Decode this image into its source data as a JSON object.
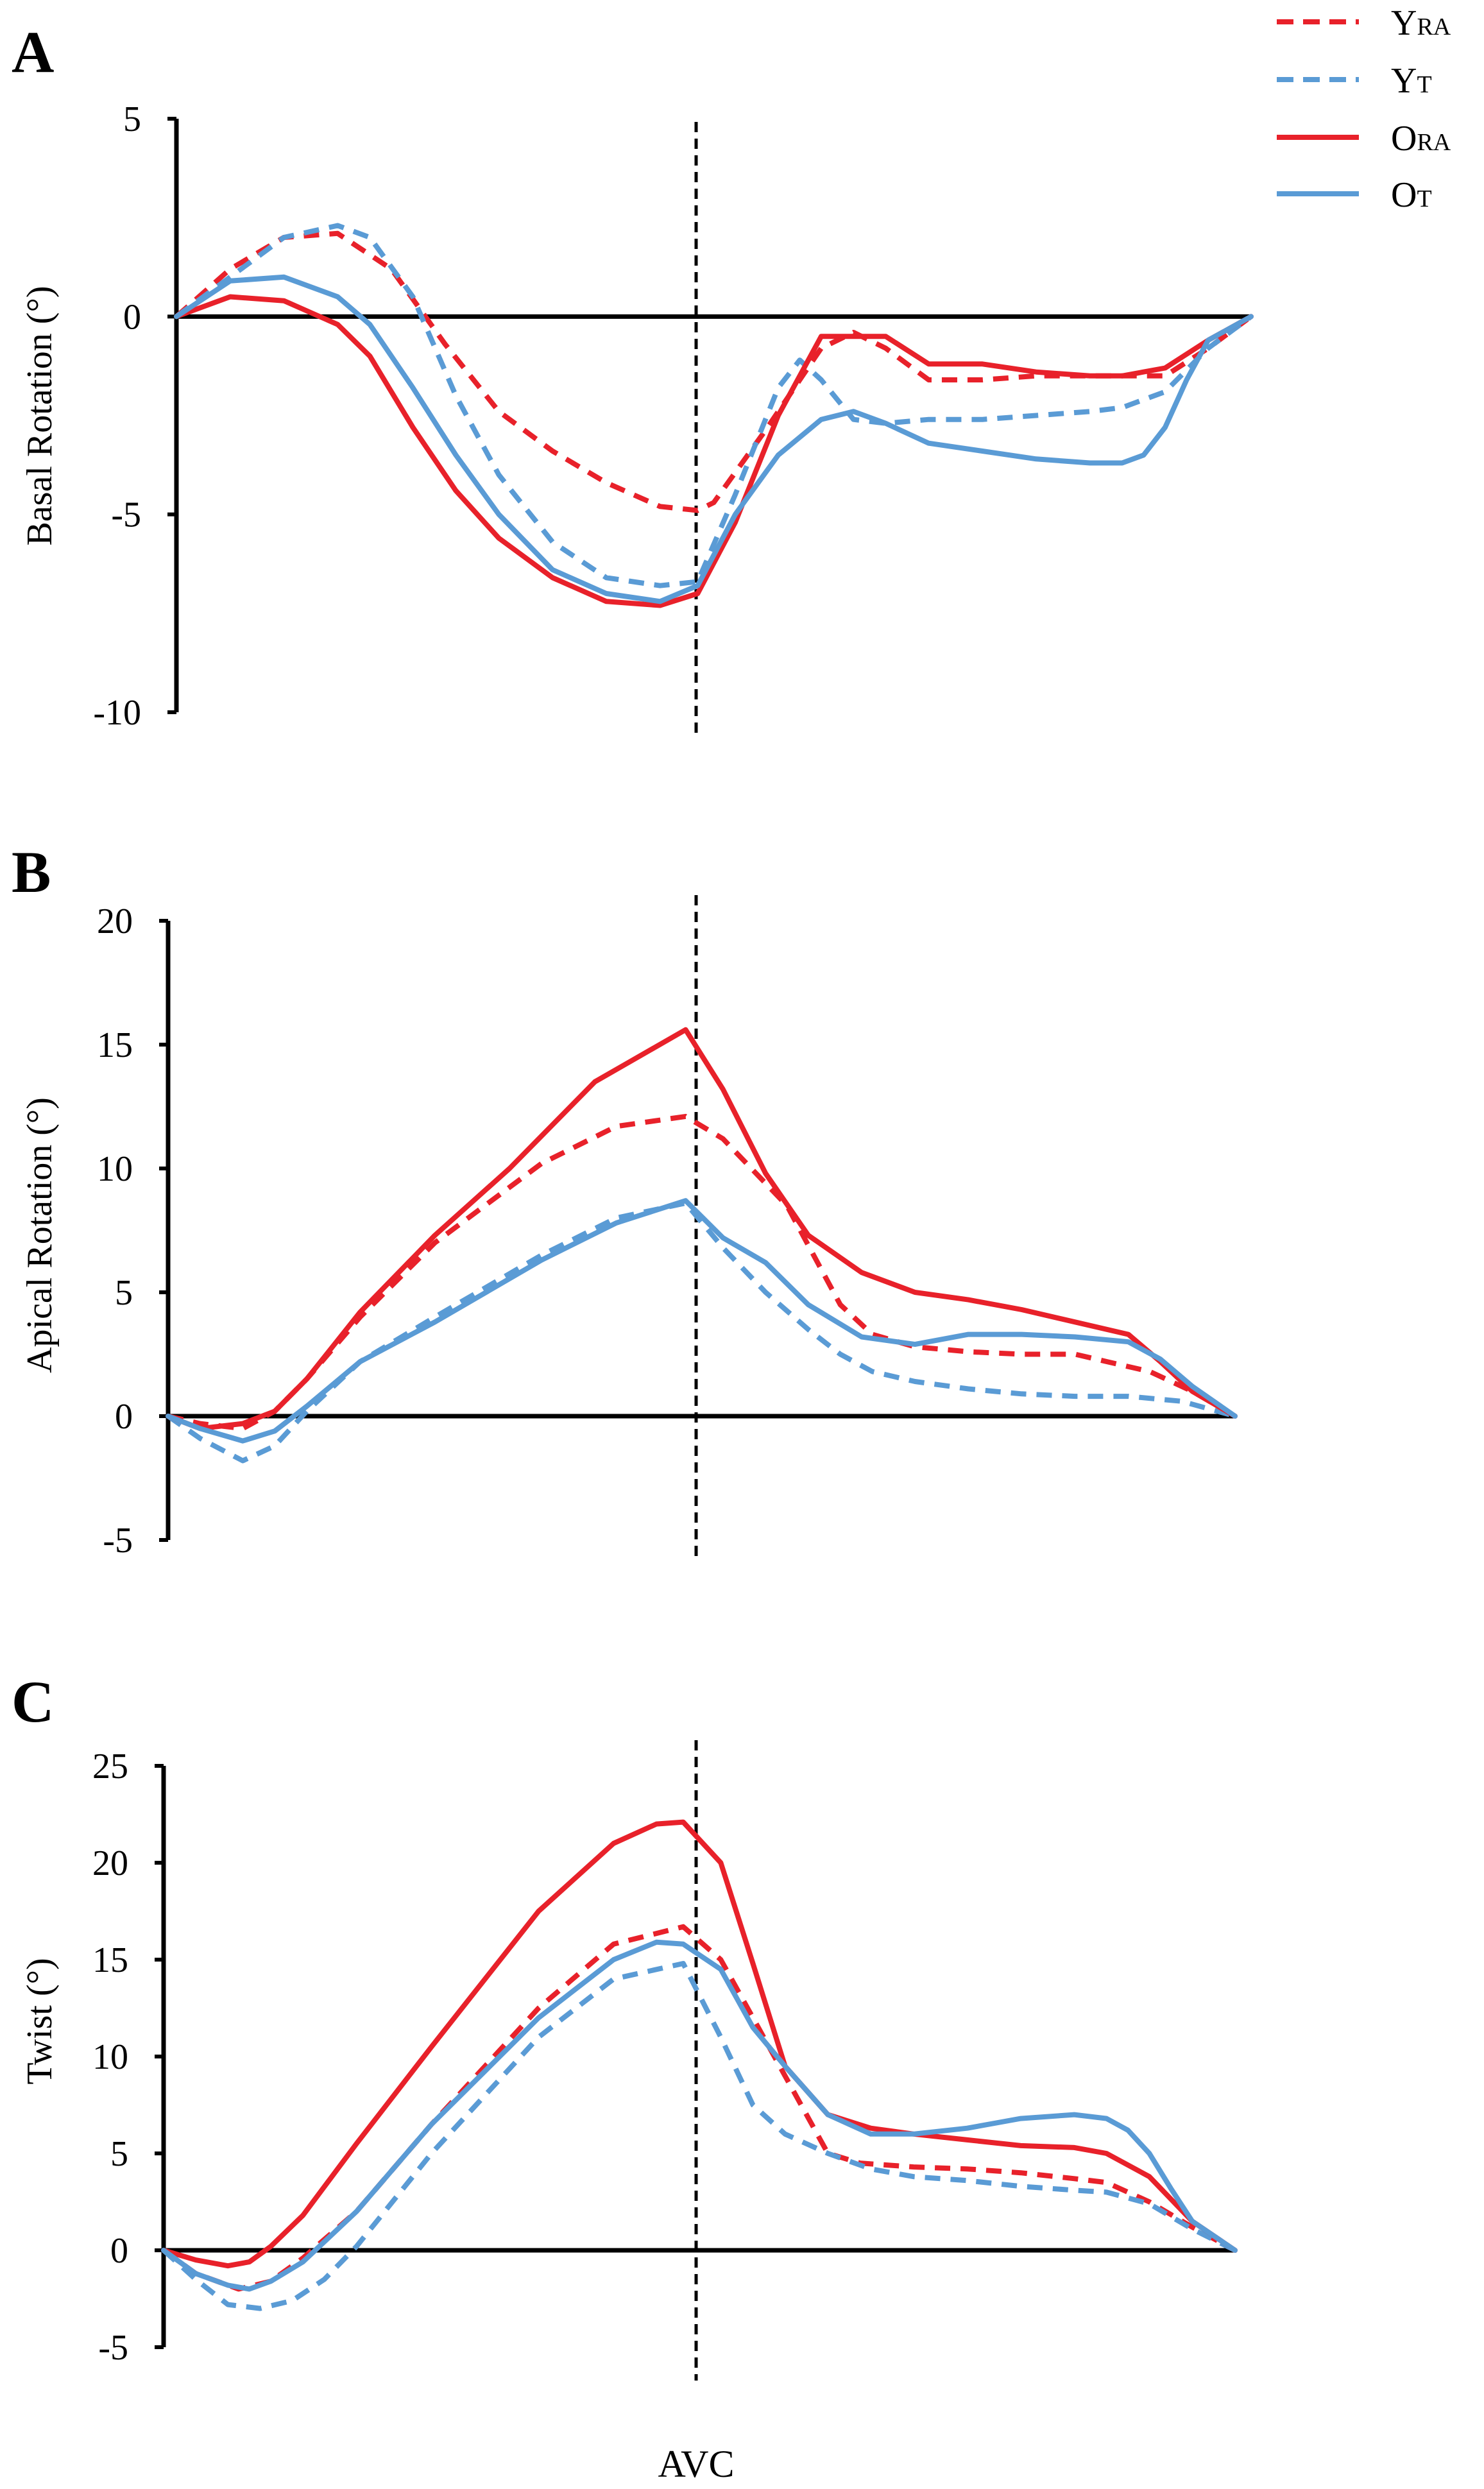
{
  "chart_data": [
    {
      "type": "line",
      "panel": "A",
      "ylabel": "Basal Rotation (°)",
      "ylim": [
        -10,
        5
      ],
      "yticks": [
        5,
        0,
        -5,
        -10
      ],
      "xlim": [
        0,
        100
      ],
      "avc_x": 48.5,
      "series": [
        {
          "key": "YRA",
          "x": [
            0,
            5,
            10,
            15,
            20,
            25,
            30,
            35,
            40,
            45,
            48.5,
            50,
            55,
            60,
            63,
            66,
            70,
            75,
            80,
            85,
            88,
            92,
            96,
            100
          ],
          "values": [
            0,
            1.2,
            2.0,
            2.1,
            1.2,
            -0.7,
            -2.4,
            -3.4,
            -4.2,
            -4.8,
            -4.9,
            -4.7,
            -2.8,
            -0.8,
            -0.4,
            -0.8,
            -1.6,
            -1.6,
            -1.5,
            -1.5,
            -1.5,
            -1.5,
            -0.8,
            0
          ]
        },
        {
          "key": "YT",
          "x": [
            0,
            5,
            10,
            15,
            18,
            22,
            26,
            30,
            35,
            40,
            45,
            48.5,
            52,
            56,
            58,
            60,
            63,
            66,
            70,
            75,
            80,
            85,
            88,
            92,
            96,
            100
          ],
          "values": [
            0,
            1.0,
            2.0,
            2.3,
            2.0,
            0.5,
            -2.0,
            -4.0,
            -5.7,
            -6.6,
            -6.8,
            -6.7,
            -4.5,
            -1.8,
            -1.1,
            -1.6,
            -2.6,
            -2.7,
            -2.6,
            -2.6,
            -2.5,
            -2.4,
            -2.3,
            -1.9,
            -0.8,
            0
          ]
        },
        {
          "key": "ORA",
          "x": [
            0,
            5,
            10,
            15,
            18,
            22,
            26,
            30,
            35,
            40,
            45,
            48.5,
            52,
            56,
            60,
            66,
            70,
            75,
            80,
            85,
            88,
            92,
            96,
            100
          ],
          "values": [
            0,
            0.5,
            0.4,
            -0.2,
            -1.0,
            -2.8,
            -4.4,
            -5.6,
            -6.6,
            -7.2,
            -7.3,
            -7.0,
            -5.2,
            -2.5,
            -0.5,
            -0.5,
            -1.2,
            -1.2,
            -1.4,
            -1.5,
            -1.5,
            -1.3,
            -0.6,
            0
          ]
        },
        {
          "key": "OT",
          "x": [
            0,
            5,
            10,
            15,
            18,
            22,
            26,
            30,
            35,
            40,
            45,
            48.5,
            52,
            56,
            60,
            63,
            66,
            70,
            75,
            80,
            85,
            88,
            90,
            92,
            94,
            96,
            100
          ],
          "values": [
            0,
            0.9,
            1.0,
            0.5,
            -0.2,
            -1.8,
            -3.5,
            -5.0,
            -6.4,
            -7.0,
            -7.2,
            -6.8,
            -5.0,
            -3.5,
            -2.6,
            -2.4,
            -2.7,
            -3.2,
            -3.4,
            -3.6,
            -3.7,
            -3.7,
            -3.5,
            -2.8,
            -1.6,
            -0.6,
            0
          ]
        }
      ]
    },
    {
      "type": "line",
      "panel": "B",
      "ylabel": "Apical Rotation (°)",
      "ylim": [
        -5,
        20
      ],
      "yticks": [
        20,
        15,
        10,
        5,
        0,
        -5
      ],
      "xlim": [
        0,
        100
      ],
      "avc_x": 48.5,
      "series": [
        {
          "key": "YRA",
          "x": [
            0,
            3,
            7,
            10,
            13,
            18,
            25,
            35,
            42,
            48.5,
            52,
            58,
            63,
            66,
            70,
            75,
            80,
            85,
            88,
            92,
            96,
            100
          ],
          "values": [
            0,
            -0.3,
            -0.5,
            0.2,
            1.5,
            4.0,
            7.0,
            10.2,
            11.7,
            12.1,
            11.2,
            8.5,
            4.5,
            3.3,
            2.8,
            2.6,
            2.5,
            2.5,
            2.2,
            1.8,
            1.0,
            0
          ]
        },
        {
          "key": "YT",
          "x": [
            0,
            3,
            7,
            10,
            13,
            18,
            25,
            35,
            42,
            48.5,
            52,
            56,
            60,
            63,
            66,
            70,
            75,
            80,
            85,
            90,
            95,
            100
          ],
          "values": [
            0,
            -0.9,
            -1.8,
            -1.2,
            0.2,
            2.2,
            4.0,
            6.5,
            8.0,
            8.6,
            6.8,
            5.0,
            3.5,
            2.5,
            1.8,
            1.4,
            1.1,
            0.9,
            0.8,
            0.8,
            0.6,
            0
          ]
        },
        {
          "key": "ORA",
          "x": [
            0,
            3,
            7,
            10,
            13,
            18,
            25,
            32,
            40,
            48.5,
            52,
            56,
            60,
            65,
            70,
            75,
            80,
            85,
            90,
            93,
            96,
            100
          ],
          "values": [
            0,
            -0.5,
            -0.3,
            0.2,
            1.5,
            4.2,
            7.3,
            10.0,
            13.5,
            15.6,
            13.2,
            9.8,
            7.3,
            5.8,
            5.0,
            4.7,
            4.3,
            3.8,
            3.3,
            2.2,
            1.0,
            0
          ]
        },
        {
          "key": "OT",
          "x": [
            0,
            3,
            7,
            10,
            13,
            18,
            25,
            35,
            42,
            48.5,
            52,
            56,
            60,
            65,
            70,
            75,
            80,
            85,
            90,
            93,
            96,
            100
          ],
          "values": [
            0,
            -0.5,
            -1.0,
            -0.6,
            0.4,
            2.2,
            3.8,
            6.3,
            7.8,
            8.7,
            7.2,
            6.2,
            4.5,
            3.2,
            2.9,
            3.3,
            3.3,
            3.2,
            3.0,
            2.3,
            1.2,
            0
          ]
        }
      ]
    },
    {
      "type": "line",
      "panel": "C",
      "ylabel": "Twist (°)",
      "ylim": [
        -5,
        25
      ],
      "yticks": [
        25,
        20,
        15,
        10,
        5,
        0,
        -5
      ],
      "xlim": [
        0,
        100
      ],
      "avc_x": 48.5,
      "series": [
        {
          "key": "YRA",
          "x": [
            0,
            3,
            7,
            10,
            13,
            18,
            25,
            35,
            42,
            48.5,
            52,
            58,
            62,
            65,
            70,
            75,
            80,
            85,
            88,
            92,
            96,
            100
          ],
          "values": [
            0,
            -1.2,
            -2.0,
            -1.6,
            -0.4,
            2.0,
            6.5,
            12.5,
            15.8,
            16.7,
            15.0,
            9.0,
            5.0,
            4.5,
            4.3,
            4.2,
            4.0,
            3.7,
            3.5,
            2.5,
            1.2,
            0
          ]
        },
        {
          "key": "YT",
          "x": [
            0,
            3,
            6,
            9,
            12,
            15,
            18,
            25,
            35,
            42,
            48.5,
            52,
            55,
            58,
            62,
            66,
            70,
            75,
            80,
            85,
            88,
            92,
            96,
            100
          ],
          "values": [
            0,
            -1.5,
            -2.8,
            -3.0,
            -2.6,
            -1.5,
            0.2,
            5.0,
            11.0,
            14.0,
            14.8,
            11.0,
            7.5,
            6.0,
            5.0,
            4.2,
            3.8,
            3.6,
            3.3,
            3.1,
            3.0,
            2.4,
            1.1,
            0
          ]
        },
        {
          "key": "ORA",
          "x": [
            0,
            3,
            6,
            8,
            10,
            13,
            18,
            25,
            35,
            42,
            46,
            48.5,
            52,
            55,
            58,
            62,
            66,
            70,
            75,
            80,
            85,
            88,
            92,
            96,
            100
          ],
          "values": [
            0,
            -0.5,
            -0.8,
            -0.6,
            0.2,
            1.8,
            5.5,
            10.5,
            17.5,
            21.0,
            22.0,
            22.1,
            20.0,
            14.8,
            9.5,
            7.0,
            6.3,
            6.0,
            5.7,
            5.4,
            5.3,
            5.0,
            3.8,
            1.5,
            0
          ]
        },
        {
          "key": "OT",
          "x": [
            0,
            3,
            6,
            8,
            10,
            13,
            18,
            25,
            35,
            42,
            46,
            48.5,
            52,
            55,
            58,
            62,
            66,
            70,
            75,
            80,
            85,
            88,
            90,
            92,
            94,
            96,
            100
          ],
          "values": [
            0,
            -1.2,
            -1.8,
            -2.0,
            -1.6,
            -0.6,
            2.0,
            6.5,
            12.0,
            15.0,
            15.9,
            15.8,
            14.5,
            11.5,
            9.5,
            7.0,
            6.0,
            6.0,
            6.3,
            6.8,
            7.0,
            6.8,
            6.2,
            5.0,
            3.2,
            1.5,
            0
          ]
        }
      ]
    }
  ],
  "legend": [
    {
      "key": "YRA",
      "main": "Y",
      "sub": "RA",
      "color": "#e8212a",
      "dashed": true
    },
    {
      "key": "YT",
      "main": "Y",
      "sub": "T",
      "color": "#5a9bd5",
      "dashed": true
    },
    {
      "key": "ORA",
      "main": "O",
      "sub": "RA",
      "color": "#e8212a",
      "dashed": false
    },
    {
      "key": "OT",
      "main": "O",
      "sub": "T",
      "color": "#5a9bd5",
      "dashed": false
    }
  ],
  "avc_label": "AVC",
  "colors": {
    "red": "#e8212a",
    "blue": "#5a9bd5",
    "axis": "#000000"
  }
}
